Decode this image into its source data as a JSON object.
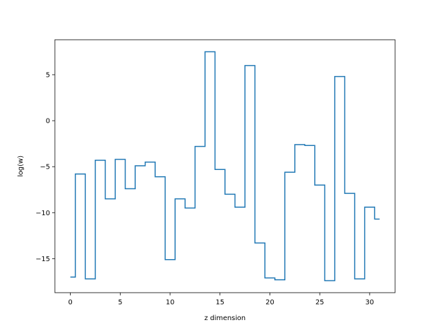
{
  "chart_data": {
    "type": "line",
    "drawstyle": "steps-mid",
    "title": "",
    "xlabel": "z dimension",
    "ylabel": "log(w)",
    "xlim": [
      -1.55,
      32.55
    ],
    "ylim": [
      -18.7,
      8.8
    ],
    "xticks": [
      0,
      5,
      10,
      15,
      20,
      25,
      30
    ],
    "xtick_labels": [
      "0",
      "5",
      "10",
      "15",
      "20",
      "25",
      "30"
    ],
    "yticks": [
      5,
      0,
      -5,
      -10,
      -15
    ],
    "ytick_labels": [
      "5",
      "0",
      "−5",
      "−10",
      "−15"
    ],
    "grid": false,
    "legend": "none",
    "series": [
      {
        "color": "#1f77b4",
        "x": [
          0,
          1,
          2,
          3,
          4,
          5,
          6,
          7,
          8,
          9,
          10,
          11,
          12,
          13,
          14,
          15,
          16,
          17,
          18,
          19,
          20,
          21,
          22,
          23,
          24,
          25,
          26,
          27,
          28,
          29,
          30,
          31
        ],
        "y": [
          -17.0,
          -5.8,
          -17.2,
          -4.3,
          -8.5,
          -4.2,
          -7.4,
          -4.9,
          -4.5,
          -6.1,
          -15.1,
          -8.5,
          -9.5,
          -2.8,
          7.5,
          -5.3,
          -8.0,
          -9.4,
          6.0,
          -13.3,
          -17.1,
          -17.3,
          -5.6,
          -2.6,
          -2.7,
          -7.0,
          -17.4,
          4.8,
          -7.9,
          -17.2,
          -9.4,
          -10.7
        ]
      }
    ]
  }
}
